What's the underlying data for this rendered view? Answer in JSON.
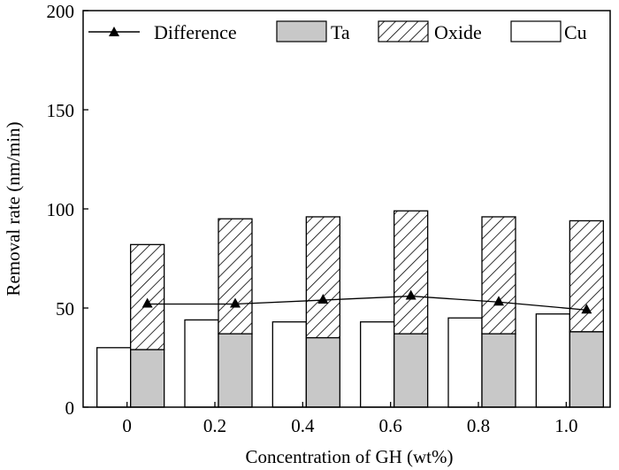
{
  "chart_data": {
    "type": "bar",
    "title": "",
    "xlabel": "Concentration of GH (wt%)",
    "ylabel": "Removal rate (nm/min)",
    "ylim": [
      0,
      200
    ],
    "yticks": [
      "0",
      "50",
      "100",
      "150",
      "200"
    ],
    "categories": [
      "0",
      "0.2",
      "0.4",
      "0.6",
      "0.8",
      "1.0"
    ],
    "legend_position": "top",
    "grid": false,
    "series": [
      {
        "name": "Difference",
        "kind": "line-triangle",
        "values": [
          52,
          52,
          54,
          56,
          53,
          49
        ]
      },
      {
        "name": "Ta",
        "kind": "bar-gray",
        "values": [
          29,
          37,
          35,
          37,
          37,
          38
        ]
      },
      {
        "name": "Oxide",
        "kind": "bar-hatched",
        "values": [
          82,
          95,
          96,
          99,
          96,
          94
        ]
      },
      {
        "name": "Cu",
        "kind": "bar-white",
        "values": [
          30,
          44,
          43,
          43,
          45,
          47
        ]
      }
    ],
    "colors": {
      "ta_fill": "#c8c8c8",
      "stroke": "#000000",
      "background": "#ffffff"
    }
  }
}
